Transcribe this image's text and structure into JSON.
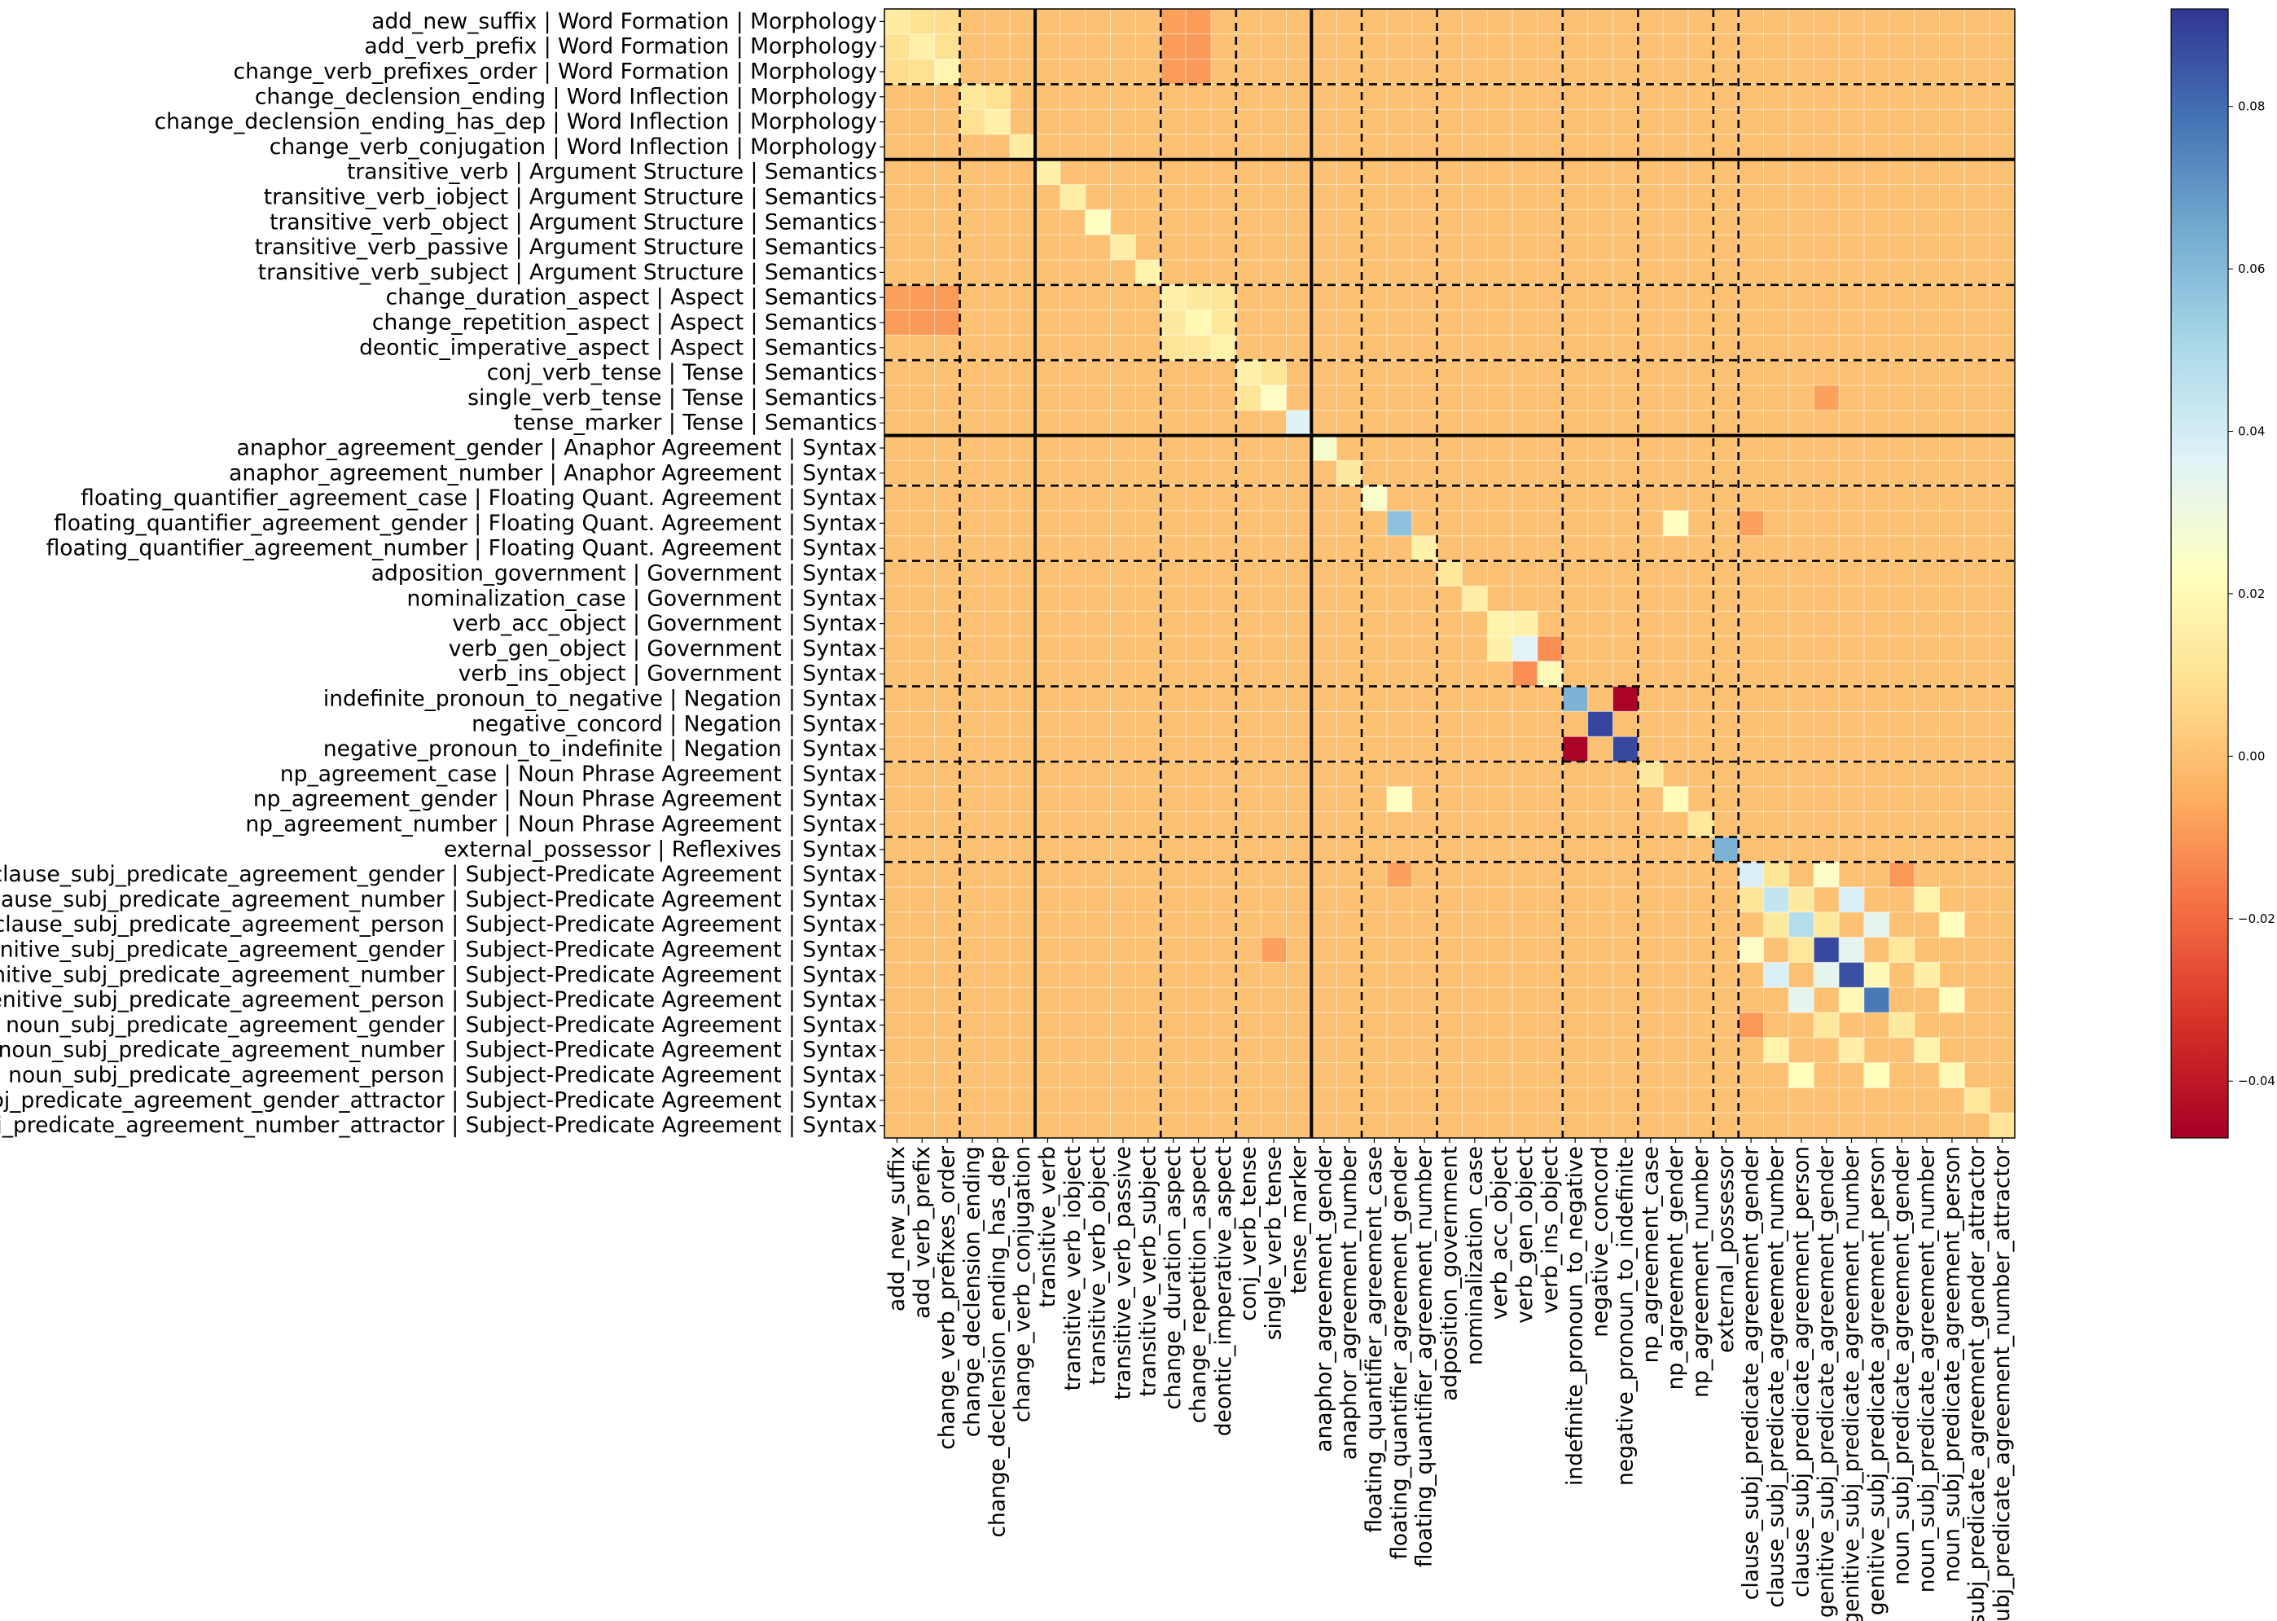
{
  "chart_data": {
    "type": "heatmap",
    "title": "",
    "xlabel": "",
    "ylabel": "",
    "colormap": "RdYlBu",
    "colormap_stops": [
      "#a50026",
      "#d73027",
      "#f46d43",
      "#fdae61",
      "#fee090",
      "#ffffbf",
      "#e0f3f8",
      "#abd9e9",
      "#74add1",
      "#4575b4",
      "#313695"
    ],
    "color_range": [
      -0.047,
      0.092
    ],
    "colorbar_ticks": [
      -0.04,
      -0.02,
      0.0,
      0.02,
      0.04,
      0.06,
      0.08
    ],
    "colorbar_tick_labels": [
      "−0.04",
      "−0.02",
      "0.00",
      "0.02",
      "0.04",
      "0.06",
      "0.08"
    ],
    "row_labels": [
      "add_new_suffix | Word Formation | Morphology",
      "add_verb_prefix | Word Formation | Morphology",
      "change_verb_prefixes_order | Word Formation | Morphology",
      "change_declension_ending | Word Inflection | Morphology",
      "change_declension_ending_has_dep | Word Inflection | Morphology",
      "change_verb_conjugation | Word Inflection | Morphology",
      "transitive_verb | Argument Structure | Semantics",
      "transitive_verb_iobject | Argument Structure | Semantics",
      "transitive_verb_object | Argument Structure | Semantics",
      "transitive_verb_passive | Argument Structure | Semantics",
      "transitive_verb_subject | Argument Structure | Semantics",
      "change_duration_aspect | Aspect | Semantics",
      "change_repetition_aspect | Aspect | Semantics",
      "deontic_imperative_aspect | Aspect | Semantics",
      "conj_verb_tense | Tense | Semantics",
      "single_verb_tense | Tense | Semantics",
      "tense_marker | Tense | Semantics",
      "anaphor_agreement_gender | Anaphor Agreement | Syntax",
      "anaphor_agreement_number | Anaphor Agreement | Syntax",
      "floating_quantifier_agreement_case | Floating Quant. Agreement | Syntax",
      "floating_quantifier_agreement_gender | Floating Quant. Agreement | Syntax",
      "floating_quantifier_agreement_number | Floating Quant. Agreement | Syntax",
      "adposition_government | Government | Syntax",
      "nominalization_case | Government | Syntax",
      "verb_acc_object | Government | Syntax",
      "verb_gen_object | Government | Syntax",
      "verb_ins_object | Government | Syntax",
      "indefinite_pronoun_to_negative | Negation | Syntax",
      "negative_concord | Negation | Syntax",
      "negative_pronoun_to_indefinite | Negation | Syntax",
      "np_agreement_case | Noun Phrase Agreement | Syntax",
      "np_agreement_gender | Noun Phrase Agreement | Syntax",
      "np_agreement_number | Noun Phrase Agreement | Syntax",
      "external_possessor | Reflexives | Syntax",
      "clause_subj_predicate_agreement_gender | Subject-Predicate Agreement | Syntax",
      "clause_subj_predicate_agreement_number | Subject-Predicate Agreement | Syntax",
      "clause_subj_predicate_agreement_person | Subject-Predicate Agreement | Syntax",
      "genitive_subj_predicate_agreement_gender | Subject-Predicate Agreement | Syntax",
      "genitive_subj_predicate_agreement_number | Subject-Predicate Agreement | Syntax",
      "genitive_subj_predicate_agreement_person | Subject-Predicate Agreement | Syntax",
      "noun_subj_predicate_agreement_gender | Subject-Predicate Agreement | Syntax",
      "noun_subj_predicate_agreement_number | Subject-Predicate Agreement | Syntax",
      "noun_subj_predicate_agreement_person | Subject-Predicate Agreement | Syntax",
      "subj_predicate_agreement_gender_attractor | Subject-Predicate Agreement | Syntax",
      "subj_predicate_agreement_number_attractor | Subject-Predicate Agreement | Syntax"
    ],
    "col_labels": [
      "add_new_suffix",
      "add_verb_prefix",
      "change_verb_prefixes_order",
      "change_declension_ending",
      "change_declension_ending_has_dep",
      "change_verb_conjugation",
      "transitive_verb",
      "transitive_verb_iobject",
      "transitive_verb_object",
      "transitive_verb_passive",
      "transitive_verb_subject",
      "change_duration_aspect",
      "change_repetition_aspect",
      "deontic_imperative_aspect",
      "conj_verb_tense",
      "single_verb_tense",
      "tense_marker",
      "anaphor_agreement_gender",
      "anaphor_agreement_number",
      "floating_quantifier_agreement_case",
      "floating_quantifier_agreement_gender",
      "floating_quantifier_agreement_number",
      "adposition_government",
      "nominalization_case",
      "verb_acc_object",
      "verb_gen_object",
      "verb_ins_object",
      "indefinite_pronoun_to_negative",
      "negative_concord",
      "negative_pronoun_to_indefinite",
      "np_agreement_case",
      "np_agreement_gender",
      "np_agreement_number",
      "external_possessor",
      "clause_subj_predicate_agreement_gender",
      "clause_subj_predicate_agreement_number",
      "clause_subj_predicate_agreement_person",
      "genitive_subj_predicate_agreement_gender",
      "genitive_subj_predicate_agreement_number",
      "genitive_subj_predicate_agreement_person",
      "noun_subj_predicate_agreement_gender",
      "noun_subj_predicate_agreement_number",
      "noun_subj_predicate_agreement_person",
      "subj_predicate_agreement_gender_attractor",
      "subj_predicate_agreement_number_attractor"
    ],
    "n_cells": 45,
    "default_value": 0.0,
    "category_boundaries_dashed": [
      3,
      11,
      14,
      19,
      22,
      27,
      30,
      33,
      34
    ],
    "domain_boundaries_solid": [
      6,
      17
    ],
    "values_note": "Symmetric matrix; off-diagonal cells not listed are approximately 0.0 (orange). Values estimated from the colorbar.",
    "notable_cells": [
      {
        "row": 0,
        "col": 0,
        "value": 0.014
      },
      {
        "row": 1,
        "col": 1,
        "value": 0.016
      },
      {
        "row": 2,
        "col": 2,
        "value": 0.018
      },
      {
        "row": 0,
        "col": 1,
        "value": 0.009
      },
      {
        "row": 0,
        "col": 2,
        "value": 0.008
      },
      {
        "row": 1,
        "col": 2,
        "value": 0.009
      },
      {
        "row": 3,
        "col": 3,
        "value": 0.012
      },
      {
        "row": 4,
        "col": 4,
        "value": 0.016
      },
      {
        "row": 5,
        "col": 5,
        "value": 0.014
      },
      {
        "row": 3,
        "col": 4,
        "value": 0.009
      },
      {
        "row": 6,
        "col": 6,
        "value": 0.016
      },
      {
        "row": 7,
        "col": 7,
        "value": 0.015
      },
      {
        "row": 8,
        "col": 8,
        "value": 0.023
      },
      {
        "row": 9,
        "col": 9,
        "value": 0.015
      },
      {
        "row": 10,
        "col": 10,
        "value": 0.017
      },
      {
        "row": 11,
        "col": 11,
        "value": 0.016
      },
      {
        "row": 12,
        "col": 12,
        "value": 0.019
      },
      {
        "row": 13,
        "col": 13,
        "value": 0.017
      },
      {
        "row": 11,
        "col": 12,
        "value": 0.013
      },
      {
        "row": 11,
        "col": 13,
        "value": 0.011
      },
      {
        "row": 12,
        "col": 13,
        "value": 0.012
      },
      {
        "row": 14,
        "col": 14,
        "value": 0.016
      },
      {
        "row": 15,
        "col": 15,
        "value": 0.024
      },
      {
        "row": 16,
        "col": 16,
        "value": 0.037
      },
      {
        "row": 14,
        "col": 15,
        "value": 0.011
      },
      {
        "row": 17,
        "col": 17,
        "value": 0.026
      },
      {
        "row": 18,
        "col": 18,
        "value": 0.013
      },
      {
        "row": 19,
        "col": 19,
        "value": 0.025
      },
      {
        "row": 20,
        "col": 20,
        "value": 0.058
      },
      {
        "row": 21,
        "col": 21,
        "value": 0.016
      },
      {
        "row": 20,
        "col": 31,
        "value": 0.023
      },
      {
        "row": 22,
        "col": 22,
        "value": 0.012
      },
      {
        "row": 23,
        "col": 23,
        "value": 0.015
      },
      {
        "row": 24,
        "col": 24,
        "value": 0.017
      },
      {
        "row": 25,
        "col": 25,
        "value": 0.036
      },
      {
        "row": 26,
        "col": 26,
        "value": 0.02
      },
      {
        "row": 24,
        "col": 25,
        "value": 0.016
      },
      {
        "row": 25,
        "col": 26,
        "value": -0.012
      },
      {
        "row": 27,
        "col": 27,
        "value": 0.062
      },
      {
        "row": 28,
        "col": 28,
        "value": 0.089
      },
      {
        "row": 29,
        "col": 29,
        "value": 0.088
      },
      {
        "row": 27,
        "col": 29,
        "value": -0.046
      },
      {
        "row": 30,
        "col": 30,
        "value": 0.012
      },
      {
        "row": 31,
        "col": 31,
        "value": 0.021
      },
      {
        "row": 32,
        "col": 32,
        "value": 0.012
      },
      {
        "row": 33,
        "col": 33,
        "value": 0.062
      },
      {
        "row": 34,
        "col": 34,
        "value": 0.038
      },
      {
        "row": 35,
        "col": 35,
        "value": 0.044
      },
      {
        "row": 36,
        "col": 36,
        "value": 0.048
      },
      {
        "row": 37,
        "col": 37,
        "value": 0.088
      },
      {
        "row": 38,
        "col": 38,
        "value": 0.086
      },
      {
        "row": 39,
        "col": 39,
        "value": 0.077
      },
      {
        "row": 40,
        "col": 40,
        "value": 0.013
      },
      {
        "row": 41,
        "col": 41,
        "value": 0.017
      },
      {
        "row": 42,
        "col": 42,
        "value": 0.02
      },
      {
        "row": 43,
        "col": 43,
        "value": 0.012
      },
      {
        "row": 44,
        "col": 44,
        "value": 0.011
      },
      {
        "row": 34,
        "col": 37,
        "value": 0.024
      },
      {
        "row": 34,
        "col": 40,
        "value": -0.01
      },
      {
        "row": 35,
        "col": 38,
        "value": 0.038
      },
      {
        "row": 35,
        "col": 41,
        "value": 0.017
      },
      {
        "row": 36,
        "col": 39,
        "value": 0.034
      },
      {
        "row": 36,
        "col": 42,
        "value": 0.022
      },
      {
        "row": 37,
        "col": 38,
        "value": 0.034
      },
      {
        "row": 37,
        "col": 40,
        "value": 0.012
      },
      {
        "row": 38,
        "col": 39,
        "value": 0.02
      },
      {
        "row": 38,
        "col": 41,
        "value": 0.015
      },
      {
        "row": 39,
        "col": 42,
        "value": 0.022
      },
      {
        "row": 35,
        "col": 36,
        "value": 0.013
      },
      {
        "row": 34,
        "col": 35,
        "value": 0.011
      },
      {
        "row": 36,
        "col": 37,
        "value": 0.012
      },
      {
        "row": 2,
        "col": 11,
        "value": -0.009
      },
      {
        "row": 2,
        "col": 12,
        "value": -0.01
      },
      {
        "row": 0,
        "col": 12,
        "value": -0.009
      },
      {
        "row": 1,
        "col": 12,
        "value": -0.01
      },
      {
        "row": 0,
        "col": 11,
        "value": -0.008
      },
      {
        "row": 1,
        "col": 11,
        "value": -0.009
      },
      {
        "row": 20,
        "col": 34,
        "value": -0.008
      },
      {
        "row": 15,
        "col": 37,
        "value": -0.008
      }
    ]
  }
}
